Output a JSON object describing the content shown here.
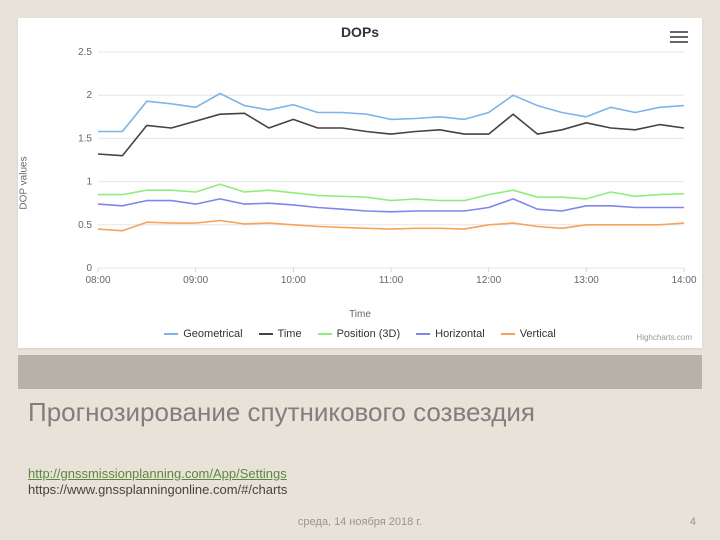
{
  "chart": {
    "title": "DOPs",
    "ylabel": "DOP values",
    "xlabel": "Time",
    "credit": "Highcharts.com",
    "background_color": "#ffffff",
    "grid_color": "#e6e6e6",
    "axis_text_color": "#666666",
    "ylim": [
      0,
      2.5
    ],
    "yticks": [
      0,
      0.5,
      1,
      1.5,
      2,
      2.5
    ],
    "xticks": [
      "08:00",
      "09:00",
      "10:00",
      "11:00",
      "12:00",
      "13:00",
      "14:00"
    ],
    "x_count": 25,
    "series": [
      {
        "name": "Geometrical",
        "color": "#7cb5ec",
        "values": [
          1.58,
          1.58,
          1.93,
          1.9,
          1.86,
          2.02,
          1.88,
          1.83,
          1.89,
          1.8,
          1.8,
          1.78,
          1.72,
          1.73,
          1.75,
          1.72,
          1.8,
          2.0,
          1.88,
          1.8,
          1.75,
          1.86,
          1.8,
          1.86,
          1.88
        ]
      },
      {
        "name": "Time",
        "color": "#434348",
        "values": [
          1.32,
          1.3,
          1.65,
          1.62,
          1.7,
          1.78,
          1.79,
          1.62,
          1.72,
          1.62,
          1.62,
          1.58,
          1.55,
          1.58,
          1.6,
          1.55,
          1.55,
          1.78,
          1.55,
          1.6,
          1.68,
          1.62,
          1.6,
          1.66,
          1.62
        ]
      },
      {
        "name": "Position (3D)",
        "color": "#90ed7d",
        "values": [
          0.85,
          0.85,
          0.9,
          0.9,
          0.88,
          0.97,
          0.88,
          0.9,
          0.87,
          0.84,
          0.83,
          0.82,
          0.78,
          0.8,
          0.78,
          0.78,
          0.85,
          0.9,
          0.82,
          0.82,
          0.8,
          0.88,
          0.83,
          0.85,
          0.86
        ]
      },
      {
        "name": "Horizontal",
        "color": "#8085e9",
        "values": [
          0.74,
          0.72,
          0.78,
          0.78,
          0.74,
          0.8,
          0.74,
          0.75,
          0.73,
          0.7,
          0.68,
          0.66,
          0.65,
          0.66,
          0.66,
          0.66,
          0.7,
          0.8,
          0.68,
          0.66,
          0.72,
          0.72,
          0.7,
          0.7,
          0.7
        ]
      },
      {
        "name": "Vertical",
        "color": "#f7a35c",
        "values": [
          0.45,
          0.43,
          0.53,
          0.52,
          0.52,
          0.55,
          0.51,
          0.52,
          0.5,
          0.48,
          0.47,
          0.46,
          0.45,
          0.46,
          0.46,
          0.45,
          0.5,
          0.52,
          0.48,
          0.46,
          0.5,
          0.5,
          0.5,
          0.5,
          0.52
        ]
      }
    ],
    "line_width": 1.6
  },
  "slide": {
    "heading": "Прогнозирование спутникового созвездия",
    "link1": "http://gnssmissionplanning.com/App/Settings",
    "link2": "https://www.gnssplanningonline.com/#/charts",
    "date": "среда, 14 ноября 2018 г.",
    "page": "4",
    "bg": "#e8e2d8",
    "bar_bg": "#b7b2a8"
  }
}
